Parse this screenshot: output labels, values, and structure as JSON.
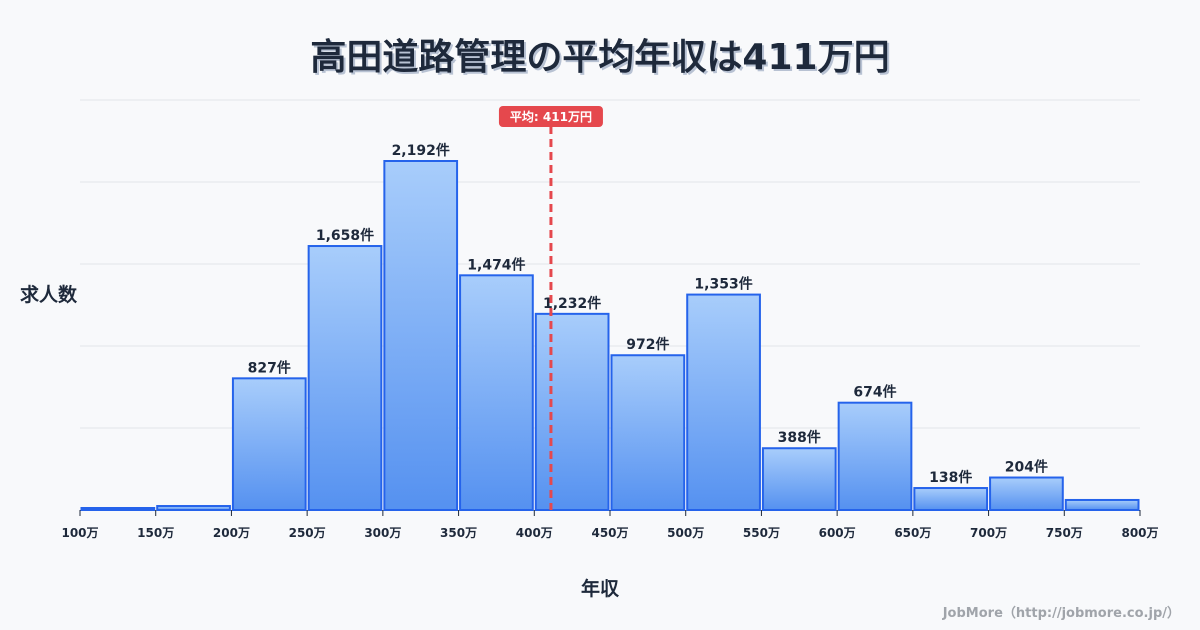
{
  "header": {
    "title": "高田道路管理の平均年収は411万円"
  },
  "axes": {
    "ylabel": "求人数",
    "xlabel": "年収"
  },
  "footer": {
    "credit": "JobMore（http://jobmore.co.jp/）"
  },
  "colors": {
    "bar_top": "#a8cdfb",
    "bar_bottom": "#5591f0",
    "bar_border": "#2563eb",
    "mean_line": "#e5484d",
    "grid": "#e2e5ea",
    "text": "#1e293b"
  },
  "chart_data": {
    "type": "bar",
    "title": "高田道路管理の平均年収は411万円",
    "xlabel": "年収",
    "ylabel": "求人数",
    "categories": [
      "100-150万",
      "150-200万",
      "200-250万",
      "250-300万",
      "300-350万",
      "350-400万",
      "400-450万",
      "450-500万",
      "500-550万",
      "550-600万",
      "600-650万",
      "650-700万",
      "700-750万",
      "750-800万"
    ],
    "bin_edges": [
      100,
      150,
      200,
      250,
      300,
      350,
      400,
      450,
      500,
      550,
      600,
      650,
      700,
      750,
      800
    ],
    "tick_labels": [
      "100万",
      "150万",
      "200万",
      "250万",
      "300万",
      "350万",
      "400万",
      "450万",
      "500万",
      "550万",
      "600万",
      "650万",
      "700万",
      "750万",
      "800万"
    ],
    "values": [
      12,
      25,
      827,
      1658,
      2192,
      1474,
      1232,
      972,
      1353,
      388,
      674,
      138,
      204,
      63
    ],
    "value_labels": [
      "",
      "",
      "827件",
      "1,658件",
      "2,192件",
      "1,474件",
      "1,232件",
      "972件",
      "1,353件",
      "388件",
      "674件",
      "138件",
      "204件",
      ""
    ],
    "mean": 411,
    "mean_label": "平均: 411万円",
    "ylim": [
      0,
      2200
    ],
    "grid": true,
    "legend": null
  }
}
